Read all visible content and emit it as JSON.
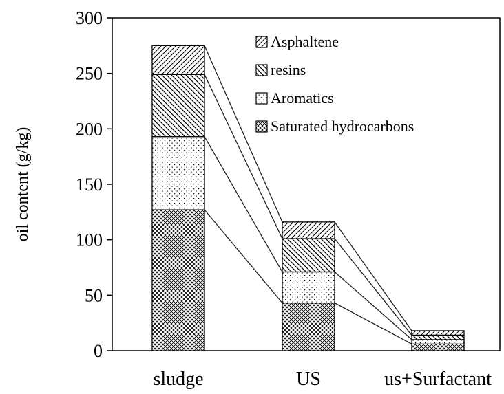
{
  "chart_data": {
    "type": "bar",
    "stacked": true,
    "title": "",
    "xlabel": "",
    "ylabel": "oil content (g/kg)",
    "ylim": [
      0,
      300
    ],
    "yticks": [
      0,
      50,
      100,
      150,
      200,
      250,
      300
    ],
    "categories": [
      "sludge",
      "US",
      "us+Surfactant"
    ],
    "series": [
      {
        "name": "Saturated hydrocarbons",
        "values": [
          127,
          43,
          6
        ]
      },
      {
        "name": "Aromatics",
        "values": [
          66,
          28,
          4
        ]
      },
      {
        "name": "resins",
        "values": [
          56,
          30,
          4
        ]
      },
      {
        "name": "Asphaltene",
        "values": [
          26,
          15,
          4
        ]
      }
    ],
    "legend_order": [
      "Asphaltene",
      "resins",
      "Aromatics",
      "Saturated hydrocarbons"
    ],
    "legend_position": "top-right",
    "connector_lines": true
  }
}
